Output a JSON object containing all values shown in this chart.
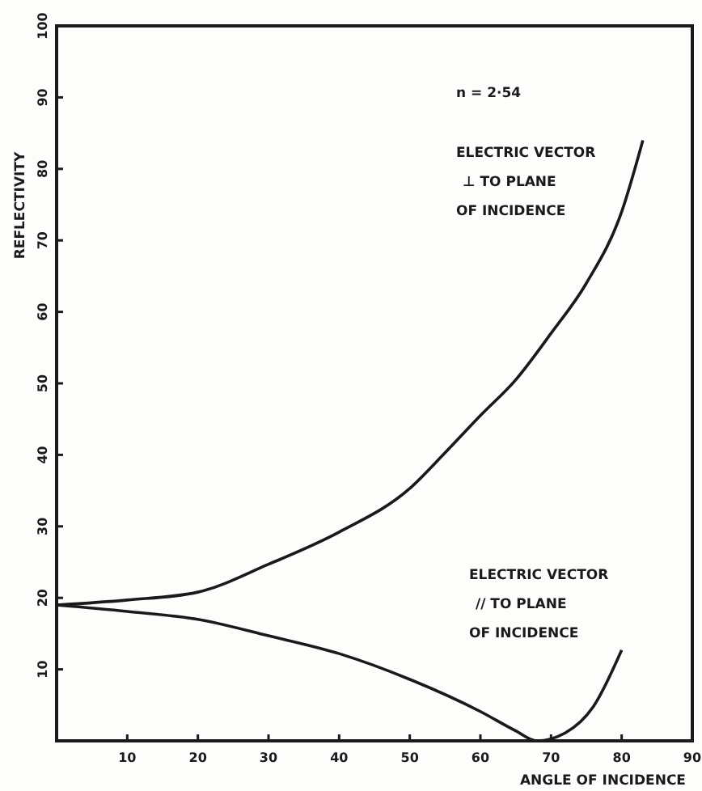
{
  "chart_data": {
    "type": "line",
    "xlabel": "ANGLE OF INCIDENCE",
    "ylabel": "REFLECTIVITY",
    "annotations": [
      "n = 2·54"
    ],
    "xlim": [
      0,
      90
    ],
    "ylim": [
      0,
      100
    ],
    "xticks": [
      10,
      20,
      30,
      40,
      50,
      60,
      70,
      80,
      90
    ],
    "yticks": [
      10,
      20,
      30,
      40,
      50,
      60,
      70,
      80,
      90,
      100
    ],
    "grid": false,
    "marker": "none",
    "line_style": "solid",
    "series": [
      {
        "name": "ELECTRIC VECTOR ⊥ TO PLANE OF INCIDENCE",
        "color": "#1a1a1a",
        "x": [
          0,
          10,
          20,
          30,
          40,
          50,
          55,
          60,
          65,
          70,
          75,
          80,
          83
        ],
        "values": [
          19,
          19.7,
          20.8,
          24.7,
          29.2,
          35.3,
          40.3,
          45.5,
          50.5,
          57,
          64,
          74,
          84
        ]
      },
      {
        "name": "ELECTRIC VECTOR // TO PLANE OF INCIDENCE",
        "color": "#1a1a1a",
        "x": [
          0,
          10,
          20,
          30,
          40,
          50,
          60,
          65,
          68,
          72,
          76,
          80
        ],
        "values": [
          19,
          18.1,
          17,
          14.7,
          12.2,
          8.6,
          4.1,
          1.4,
          0,
          1.1,
          4.8,
          12.7
        ]
      }
    ]
  }
}
